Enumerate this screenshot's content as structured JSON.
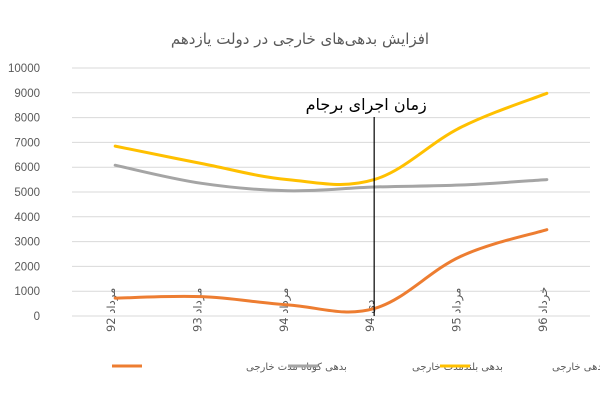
{
  "chart_data": {
    "type": "line",
    "title": "افزایش بدهی‌های خارجی در دولت یازدهم",
    "xlabel": "",
    "ylabel": "",
    "categories": [
      "مرداد 92",
      "مرداد 93",
      "مرداد 94",
      "دی 94",
      "مرداد 95",
      "خرداد 96"
    ],
    "ylim": [
      0,
      10000
    ],
    "yticks": [
      0,
      1000,
      2000,
      3000,
      4000,
      5000,
      6000,
      7000,
      8000,
      9000,
      10000
    ],
    "grid": true,
    "legend_position": "bottom",
    "series": [
      {
        "name": "بدهی کوتاه مدت خارجی",
        "color": "#ed7d31",
        "values": [
          720,
          780,
          450,
          300,
          2400,
          3480
        ]
      },
      {
        "name": "بدهی بلندمدت خارجی",
        "color": "#a5a5a5",
        "values": [
          6080,
          5350,
          5050,
          5200,
          5280,
          5500
        ]
      },
      {
        "name": "کل بدهی خارجی",
        "color": "#ffc000",
        "values": [
          6850,
          6150,
          5500,
          5500,
          7600,
          8980
        ]
      }
    ],
    "annotation": {
      "text": "زمان اجرای برجام",
      "at_category": 3,
      "color": "#000000"
    }
  }
}
